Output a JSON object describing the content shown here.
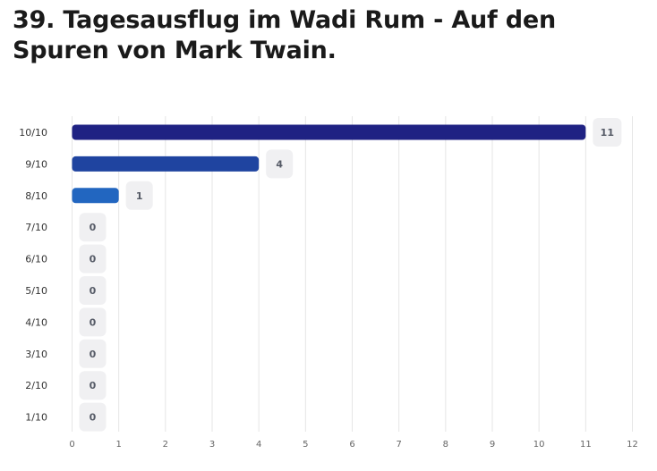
{
  "title": "39. Tagesausflug im Wadi Rum - Auf den Spuren von Mark Twain.",
  "chart_data": {
    "type": "bar",
    "orientation": "horizontal",
    "title": "39. Tagesausflug im Wadi Rum - Auf den Spuren von Mark Twain.",
    "xlabel": "",
    "ylabel": "",
    "categories": [
      "10/10",
      "9/10",
      "8/10",
      "7/10",
      "6/10",
      "5/10",
      "4/10",
      "3/10",
      "2/10",
      "1/10"
    ],
    "values": [
      11,
      4,
      1,
      0,
      0,
      0,
      0,
      0,
      0,
      0
    ],
    "xlim": [
      0,
      12
    ],
    "xticks": [
      0,
      1,
      2,
      3,
      4,
      5,
      6,
      7,
      8,
      9,
      10,
      11,
      12
    ],
    "grid": "vertical",
    "legend": "none",
    "colors": [
      "#1f2283",
      "#1f44a0",
      "#2266c0",
      "#2266c0",
      "#2266c0",
      "#2266c0",
      "#2266c0",
      "#2266c0",
      "#2266c0",
      "#2266c0"
    ],
    "value_badge_color": "#f0f0f2",
    "grid_color": "#e6e6e6"
  }
}
